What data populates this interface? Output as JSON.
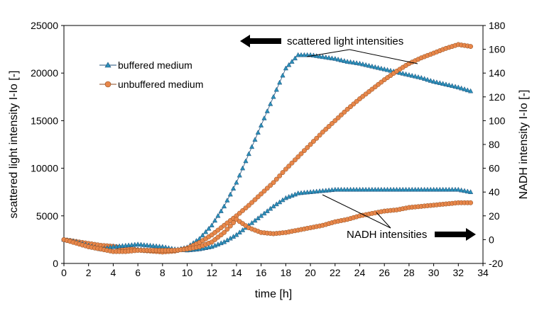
{
  "chart_data": {
    "type": "scatter",
    "title": "",
    "xlabel": "time  [h]",
    "ylabel_left": "scattered light intensity  I-Io  [-]",
    "ylabel_right": "NADH intensity  I-Io  [-]",
    "xlim": [
      0,
      34
    ],
    "ylim_left": [
      0,
      25000
    ],
    "ylim_right": [
      -20,
      180
    ],
    "x_ticks": [
      "0",
      "2",
      "4",
      "6",
      "8",
      "10",
      "12",
      "14",
      "16",
      "18",
      "20",
      "22",
      "24",
      "26",
      "28",
      "30",
      "32",
      "34"
    ],
    "y_ticks_left": [
      "0",
      "5000",
      "10000",
      "15000",
      "20000",
      "25000"
    ],
    "y_ticks_right": [
      "-20",
      "0",
      "20",
      "40",
      "60",
      "80",
      "100",
      "120",
      "140",
      "160",
      "180"
    ],
    "grid": false,
    "legend": {
      "position": "top-left",
      "entries": [
        {
          "label": "buffered medium",
          "marker": "triangle",
          "color": "#2b8fb8"
        },
        {
          "label": "unbuffered medium",
          "marker": "circle",
          "color": "#e8874a"
        }
      ]
    },
    "annotations": {
      "scattered": "scattered light intensities",
      "nadh": "NADH intensities"
    },
    "colors": {
      "buffered_marker": "#2b8fb8",
      "buffered_line": "#1f4f7a",
      "unbuffered_marker": "#e8874a",
      "unbuffered_line": "#8a4a20",
      "arrow": "#000000"
    },
    "series": [
      {
        "name": "buffered medium - scattered light",
        "axis": "left",
        "marker": "triangle",
        "x": [
          0,
          1,
          2,
          3,
          4,
          5,
          6,
          7,
          8,
          9,
          10,
          11,
          12,
          13,
          14,
          15,
          16,
          17,
          18,
          19,
          20,
          21,
          22,
          23,
          24,
          25,
          26,
          27,
          28,
          29,
          30,
          31,
          32,
          33
        ],
        "y": [
          2500,
          2300,
          2000,
          1800,
          1800,
          1600,
          1500,
          1400,
          1300,
          1400,
          1700,
          2600,
          4000,
          6000,
          8500,
          11500,
          14500,
          17500,
          20500,
          21900,
          21900,
          21700,
          21500,
          21200,
          21000,
          20700,
          20400,
          20100,
          19800,
          19500,
          19100,
          18800,
          18500,
          18100
        ]
      },
      {
        "name": "unbuffered medium - scattered light",
        "axis": "left",
        "marker": "circle",
        "x": [
          0,
          1,
          2,
          3,
          4,
          5,
          6,
          7,
          8,
          9,
          10,
          11,
          12,
          13,
          14,
          15,
          16,
          17,
          18,
          19,
          20,
          21,
          22,
          23,
          24,
          25,
          26,
          27,
          28,
          29,
          30,
          31,
          32,
          33
        ],
        "y": [
          2500,
          2300,
          2100,
          1900,
          1800,
          1600,
          1400,
          1300,
          1200,
          1300,
          1600,
          2200,
          3000,
          4000,
          5000,
          6100,
          7300,
          8500,
          9900,
          11200,
          12500,
          13800,
          15000,
          16200,
          17300,
          18300,
          19300,
          20200,
          21000,
          21600,
          22100,
          22600,
          23000,
          22800
        ]
      },
      {
        "name": "buffered medium - NADH",
        "axis": "right",
        "marker": "triangle",
        "x": [
          0,
          1,
          2,
          3,
          4,
          5,
          6,
          7,
          8,
          9,
          10,
          11,
          12,
          13,
          14,
          15,
          16,
          17,
          18,
          19,
          20,
          21,
          22,
          23,
          24,
          25,
          26,
          27,
          28,
          29,
          30,
          31,
          32,
          33
        ],
        "y": [
          0,
          -2,
          -5,
          -8,
          -6,
          -5,
          -4,
          -5,
          -6,
          -8,
          -9,
          -8,
          -6,
          -2,
          4,
          12,
          20,
          28,
          35,
          39,
          40,
          41,
          42,
          42,
          42,
          42,
          42,
          42,
          42,
          42,
          42,
          42,
          42,
          40
        ]
      },
      {
        "name": "unbuffered medium - NADH",
        "axis": "right",
        "marker": "circle",
        "x": [
          0,
          1,
          2,
          3,
          4,
          5,
          6,
          7,
          8,
          9,
          10,
          11,
          12,
          13,
          14,
          15,
          16,
          17,
          18,
          19,
          20,
          21,
          22,
          23,
          24,
          25,
          26,
          27,
          28,
          29,
          30,
          31,
          32,
          33
        ],
        "y": [
          0,
          -3,
          -6,
          -8,
          -10,
          -10,
          -9,
          -9,
          -9,
          -9,
          -8,
          -6,
          -2,
          6,
          17,
          10,
          6,
          5,
          6,
          8,
          10,
          12,
          15,
          17,
          20,
          22,
          24,
          25,
          27,
          28,
          29,
          30,
          31,
          31
        ]
      }
    ]
  }
}
